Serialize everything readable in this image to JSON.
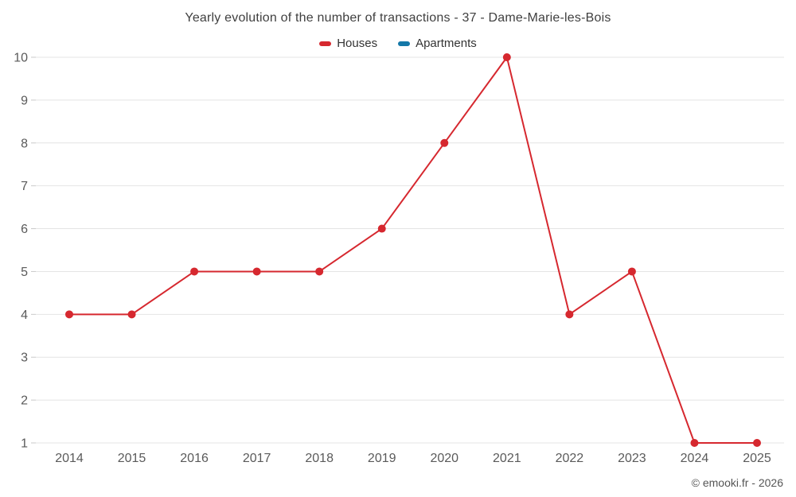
{
  "title": "Yearly evolution of the number of transactions - 37 - Dame-Marie-les-Bois",
  "legend": {
    "items": [
      {
        "label": "Houses",
        "color": "#d6282f"
      },
      {
        "label": "Apartments",
        "color": "#1478a8"
      }
    ]
  },
  "footer": {
    "copyright": "© emooki.fr - 2026"
  },
  "chart_data": {
    "type": "line",
    "title": "Yearly evolution of the number of transactions - 37 - Dame-Marie-les-Bois",
    "categories": [
      "2014",
      "2015",
      "2016",
      "2017",
      "2018",
      "2019",
      "2020",
      "2021",
      "2022",
      "2023",
      "2024",
      "2025"
    ],
    "series": [
      {
        "name": "Houses",
        "color": "#d6282f",
        "values": [
          4,
          4,
          5,
          5,
          5,
          6,
          8,
          10,
          4,
          5,
          1,
          1
        ]
      },
      {
        "name": "Apartments",
        "color": "#1478a8",
        "values": []
      }
    ],
    "xlabel": "",
    "ylabel": "",
    "ylim": [
      1,
      10
    ],
    "yticks": [
      1,
      2,
      3,
      4,
      5,
      6,
      7,
      8,
      9,
      10
    ],
    "grid": "horizontal",
    "legend_position": "top"
  }
}
